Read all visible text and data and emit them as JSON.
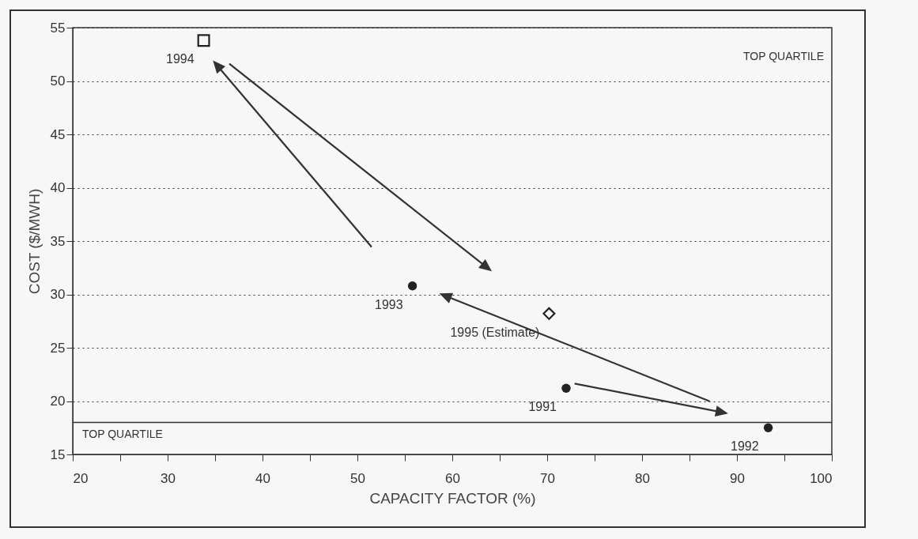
{
  "chart_data": {
    "type": "scatter",
    "xlabel": "CAPACITY FACTOR (%)",
    "ylabel": "COST ($/MWH)",
    "xlim": [
      20,
      100
    ],
    "ylim": [
      15,
      55
    ],
    "xticks": [
      20,
      {
        "value": 25,
        "label": null
      },
      30,
      {
        "value": 35,
        "label": null
      },
      40,
      {
        "value": 45,
        "label": null
      },
      50,
      {
        "value": 55,
        "label": null
      },
      60,
      {
        "value": 65,
        "label": null
      },
      70,
      {
        "value": 75,
        "label": null
      },
      80,
      {
        "value": 85,
        "label": null
      },
      90,
      {
        "value": 95,
        "label": null
      },
      100
    ],
    "yticks": [
      15,
      20,
      25,
      30,
      35,
      40,
      45,
      50,
      55
    ],
    "grid": "y",
    "series": [
      {
        "color": "#222222",
        "marker": "circle",
        "x": [
          72.0,
          93.3,
          55.8
        ],
        "values": [
          21.2,
          17.5,
          30.8
        ]
      },
      {
        "color": "#222222",
        "marker": "square",
        "x": [
          33.8
        ],
        "values": [
          53.8
        ]
      },
      {
        "color": "#222222",
        "marker": "diamond",
        "x": [
          70.2
        ],
        "values": [
          28.2
        ]
      }
    ],
    "ref_lines": [
      {
        "axis": "y",
        "value": 18,
        "label": "TOP QUARTILE",
        "color": "#333333",
        "line_style": "solid"
      }
    ],
    "annotations": [
      "TOP QUARTILE",
      {
        "text": "1991",
        "x": 72.0,
        "y": 21.2
      },
      {
        "text": "1992",
        "x": 93.3,
        "y": 17.5
      },
      {
        "text": "1993",
        "x": 55.8,
        "y": 30.8
      },
      {
        "text": "1994",
        "x": 33.8,
        "y": 53.8
      },
      {
        "text": "1995 (Estimate)",
        "x": 70.2,
        "y": 28.2
      }
    ]
  }
}
